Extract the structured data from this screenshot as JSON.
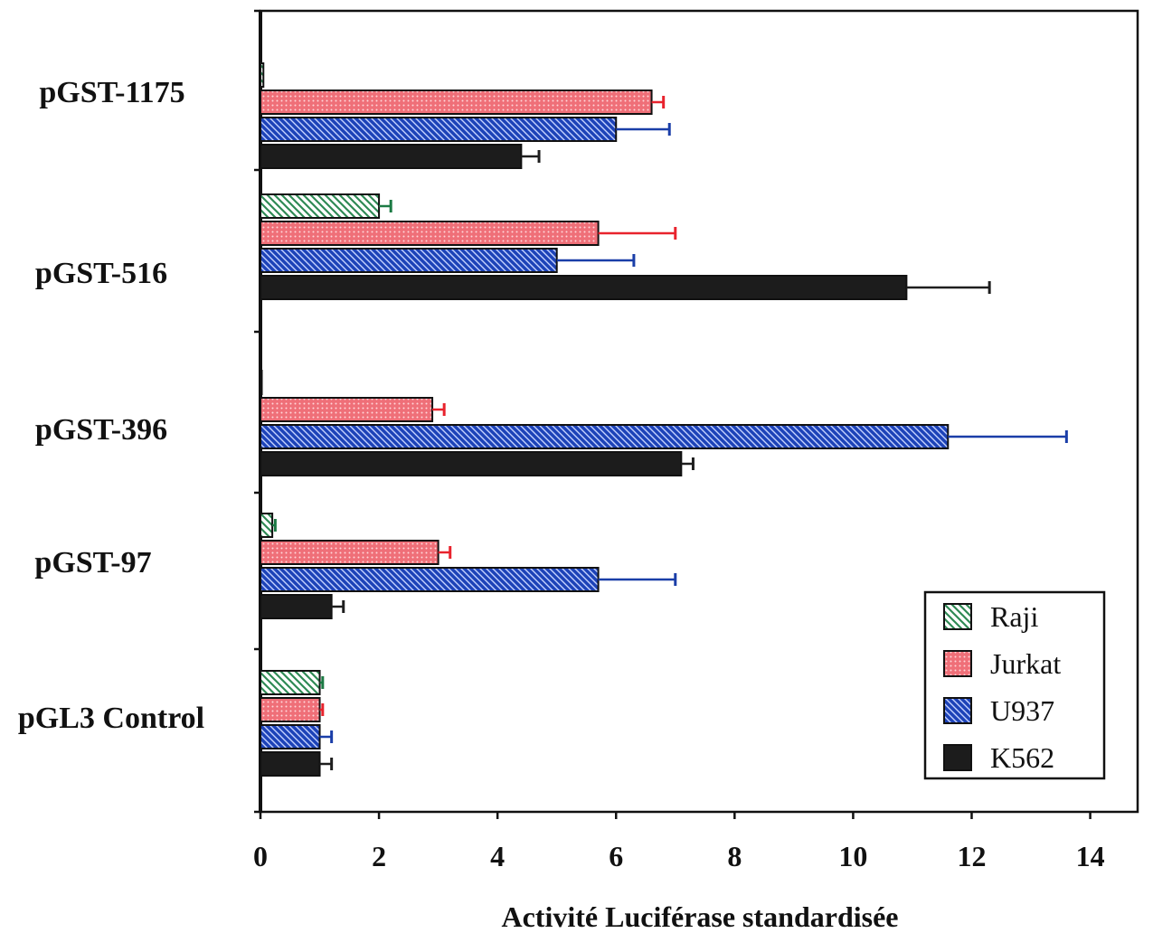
{
  "chart_data": {
    "type": "bar",
    "orientation": "horizontal",
    "categories": [
      "pGST-1175",
      "pGST-516",
      "pGST-396",
      "pGST-97",
      "pGL3 Control"
    ],
    "series": [
      {
        "name": "Raji",
        "values": [
          0.05,
          2.0,
          0.0,
          0.2,
          1.0
        ],
        "errors": [
          0.0,
          0.2,
          0.0,
          0.05,
          0.05
        ],
        "color": "#b8e0c6",
        "error_color": "#1c7a44"
      },
      {
        "name": "Jurkat",
        "values": [
          6.6,
          5.7,
          2.9,
          3.0,
          1.0
        ],
        "errors": [
          0.2,
          1.3,
          0.2,
          0.2,
          0.05
        ],
        "color": "#f27c84",
        "error_color": "#e8232d"
      },
      {
        "name": "U937",
        "values": [
          6.0,
          5.0,
          11.6,
          5.7,
          1.0
        ],
        "errors": [
          0.9,
          1.3,
          2.0,
          1.3,
          0.2
        ],
        "color": "#2a55c6",
        "error_color": "#1a3ea8"
      },
      {
        "name": "K562",
        "values": [
          4.4,
          10.9,
          7.1,
          1.2,
          1.0
        ],
        "errors": [
          0.3,
          1.4,
          0.2,
          0.2,
          0.2
        ],
        "color": "#1e1e1e",
        "error_color": "#1e1e1e"
      }
    ],
    "xlabel": "Activité Luciférase standardisée",
    "ylabel": "",
    "xlim": [
      0,
      14.8
    ],
    "xticks": [
      "0",
      "2",
      "4",
      "6",
      "8",
      "10",
      "12",
      "14"
    ],
    "grid": false,
    "legend_position": "bottom-right"
  }
}
